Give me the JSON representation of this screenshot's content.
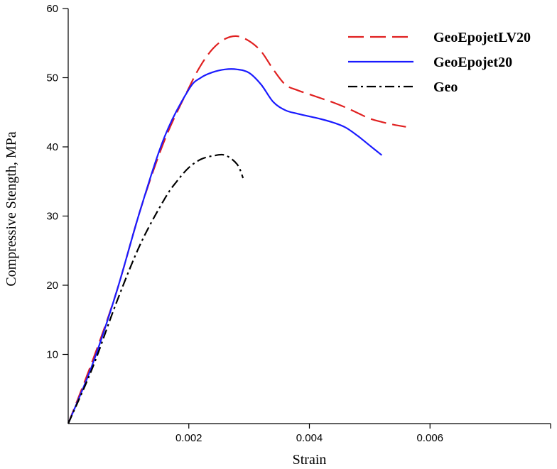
{
  "chart_data": {
    "type": "line",
    "title": "",
    "xlabel": "Strain",
    "ylabel": "Compressive Stength, MPa",
    "xlim": [
      0,
      0.008
    ],
    "ylim": [
      0,
      60
    ],
    "x_ticks": [
      {
        "value": 0.002,
        "label": "0.002"
      },
      {
        "value": 0.004,
        "label": "0.004"
      },
      {
        "value": 0.006,
        "label": "0.006"
      }
    ],
    "y_ticks": [
      {
        "value": 10,
        "label": "10"
      },
      {
        "value": 20,
        "label": "20"
      },
      {
        "value": 30,
        "label": "30"
      },
      {
        "value": 40,
        "label": "40"
      },
      {
        "value": 50,
        "label": "50"
      },
      {
        "value": 60,
        "label": "60"
      }
    ],
    "grid": false,
    "legend_position": "top-right",
    "series": [
      {
        "name": "GeoEpojetLV20",
        "color": "#e02020",
        "dash": "dashed",
        "x": [
          0,
          0.0004,
          0.0008,
          0.0012,
          0.0016,
          0.002,
          0.0022,
          0.0024,
          0.0026,
          0.0028,
          0.003,
          0.0032,
          0.0034,
          0.0036,
          0.0038,
          0.004,
          0.0042,
          0.0044,
          0.0046,
          0.0048,
          0.005,
          0.0052,
          0.0054,
          0.0056
        ],
        "y": [
          0,
          9,
          19,
          31,
          41,
          48.5,
          51.8,
          54.2,
          55.6,
          56,
          55.3,
          53.8,
          51.2,
          49,
          48.2,
          47.6,
          47,
          46.4,
          45.7,
          44.9,
          44.1,
          43.6,
          43.2,
          42.9
        ]
      },
      {
        "name": "GeoEpojet20",
        "color": "#1a1aff",
        "dash": "solid",
        "x": [
          0,
          0.0004,
          0.0008,
          0.0012,
          0.0016,
          0.002,
          0.0022,
          0.0024,
          0.0026,
          0.0028,
          0.003,
          0.0032,
          0.0034,
          0.0036,
          0.0038,
          0.004,
          0.0042,
          0.0044,
          0.0046,
          0.0048,
          0.005,
          0.0052
        ],
        "y": [
          0,
          8.5,
          19,
          31,
          41.5,
          48.3,
          50,
          50.8,
          51.2,
          51.2,
          50.7,
          49,
          46.5,
          45.3,
          44.8,
          44.4,
          44,
          43.5,
          42.8,
          41.6,
          40.2,
          38.8
        ]
      },
      {
        "name": "Geo",
        "color": "#000000",
        "dash": "dashdot",
        "x": [
          0,
          0.0004,
          0.0008,
          0.0012,
          0.0016,
          0.0018,
          0.002,
          0.0022,
          0.0024,
          0.0026,
          0.0028,
          0.0029
        ],
        "y": [
          0,
          8,
          17.5,
          26,
          32.5,
          35,
          37,
          38.2,
          38.7,
          38.8,
          37.5,
          35.5
        ]
      }
    ]
  }
}
